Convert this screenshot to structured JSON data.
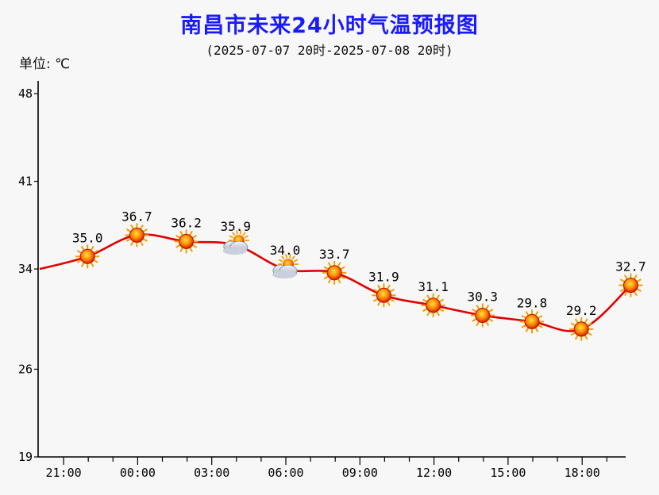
{
  "title": "南昌市未来24小时气温预报图",
  "subtitle": "(2025-07-07 20时-2025-07-08 20时)",
  "unit_label": "单位: ℃",
  "chart_data": {
    "type": "line",
    "y_ticks": [
      "48",
      "41",
      "34",
      "26",
      "19"
    ],
    "y_tick_values": [
      48,
      41,
      34,
      26,
      19
    ],
    "ylim": [
      19,
      48
    ],
    "x_ticks": [
      "21:00",
      "00:00",
      "03:00",
      "06:00",
      "09:00",
      "12:00",
      "15:00",
      "18:00"
    ],
    "x_tick_hours": [
      1,
      4,
      7,
      10,
      13,
      16,
      19,
      22
    ],
    "xlim": [
      0,
      24
    ],
    "points": [
      {
        "hour": 2,
        "value": 35.0,
        "label": "35.0",
        "icon": "sun-icon"
      },
      {
        "hour": 4,
        "value": 36.7,
        "label": "36.7",
        "icon": "sun-icon"
      },
      {
        "hour": 6,
        "value": 36.2,
        "label": "36.2",
        "icon": "sun-icon"
      },
      {
        "hour": 8,
        "value": 35.9,
        "label": "35.9",
        "icon": "cloud-sun-icon"
      },
      {
        "hour": 10,
        "value": 34.0,
        "label": "34.0",
        "icon": "cloud-sun-icon"
      },
      {
        "hour": 12,
        "value": 33.7,
        "label": "33.7",
        "icon": "sun-icon"
      },
      {
        "hour": 14,
        "value": 31.9,
        "label": "31.9",
        "icon": "sun-icon"
      },
      {
        "hour": 16,
        "value": 31.1,
        "label": "31.1",
        "icon": "sun-icon"
      },
      {
        "hour": 18,
        "value": 30.3,
        "label": "30.3",
        "icon": "sun-icon"
      },
      {
        "hour": 20,
        "value": 29.8,
        "label": "29.8",
        "icon": "sun-icon"
      },
      {
        "hour": 22,
        "value": 29.2,
        "label": "29.2",
        "icon": "sun-icon"
      },
      {
        "hour": 24,
        "value": 32.7,
        "label": "32.7",
        "icon": "sun-icon"
      }
    ],
    "line_color": "#e00000",
    "label_color": "#000000",
    "grid": false
  }
}
